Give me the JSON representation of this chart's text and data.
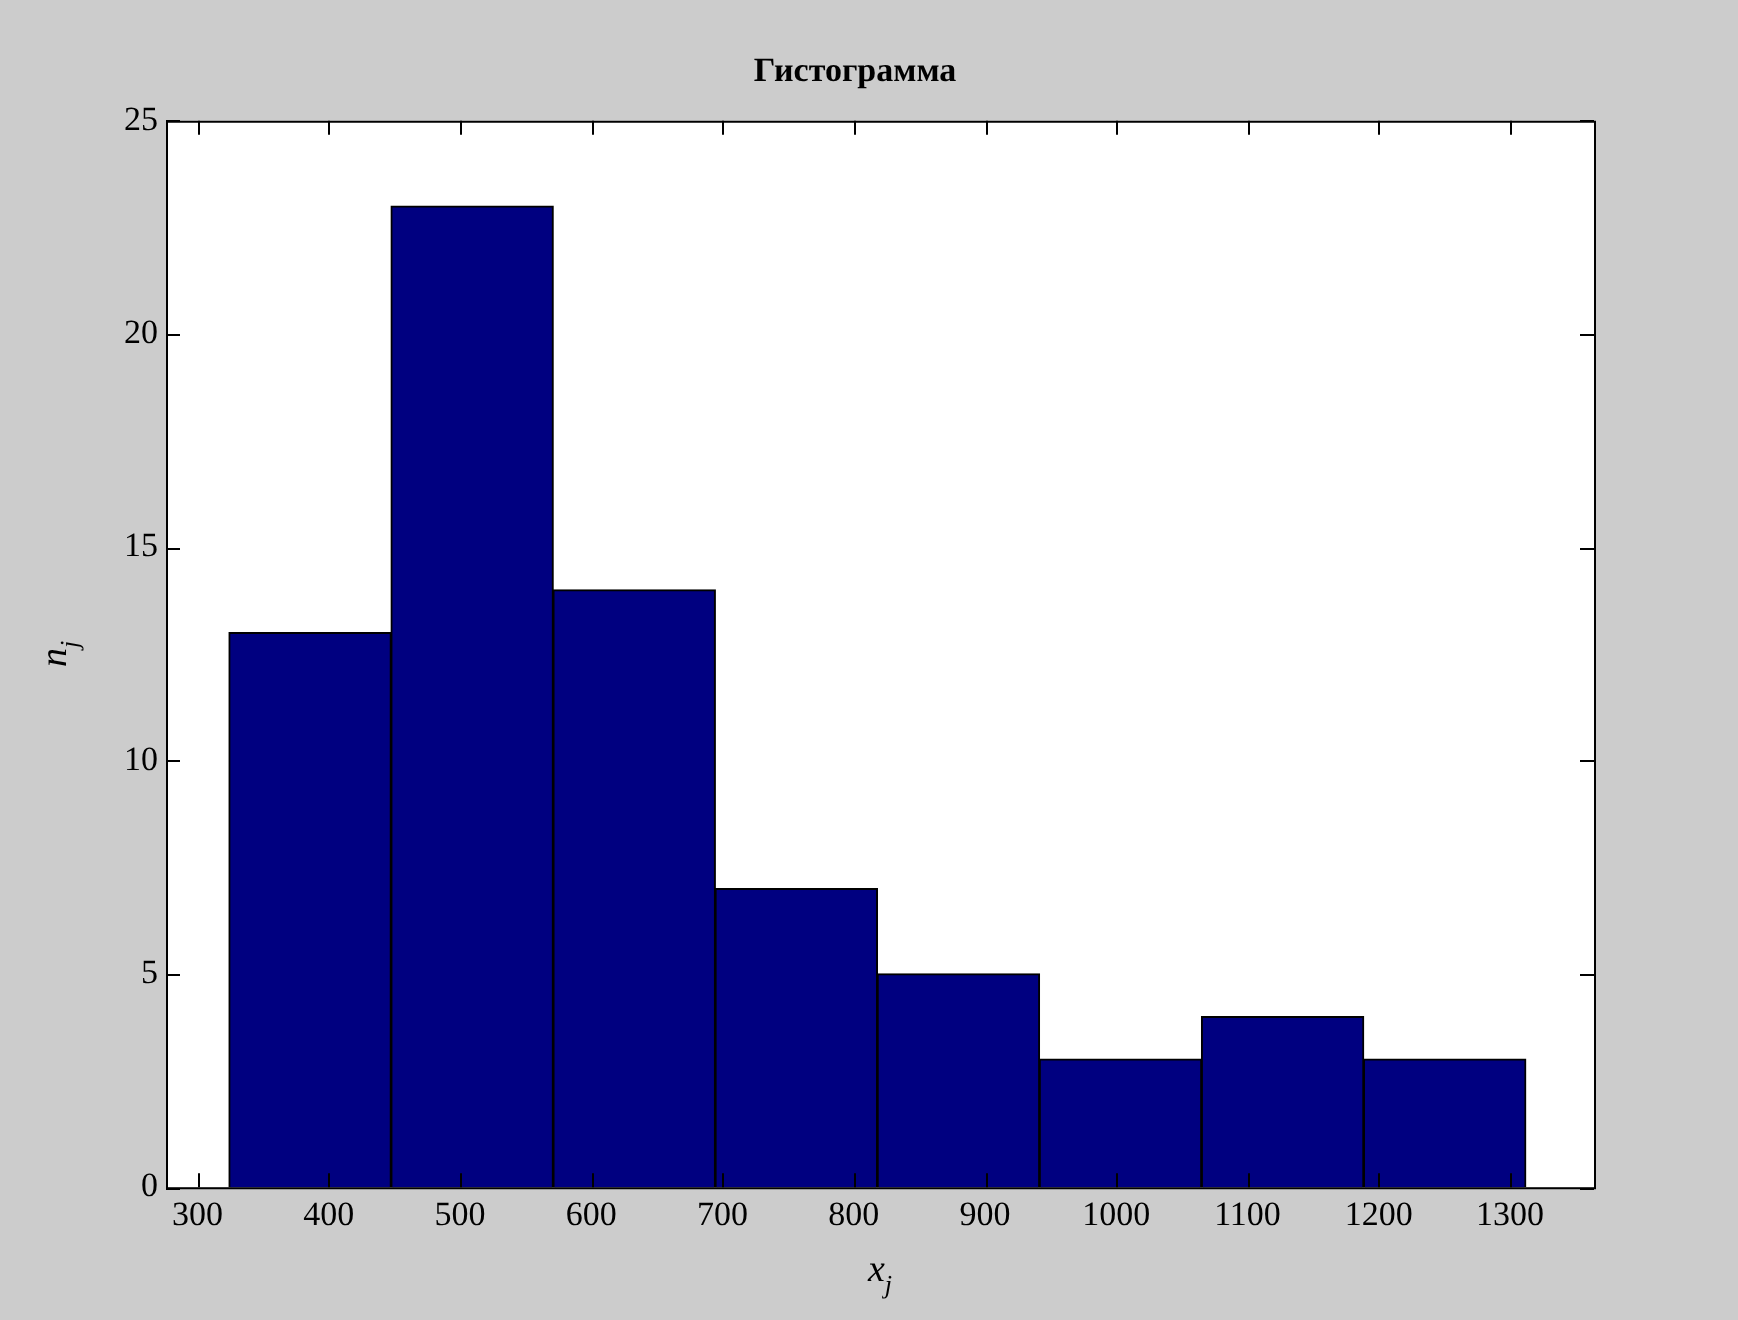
{
  "chart_data": {
    "type": "histogram",
    "title": "Гистограмма",
    "xlabel": "x$_{j}$",
    "ylabel": "n$_{j}$",
    "bins": [
      324,
      447.5,
      571,
      694.5,
      818,
      941.5,
      1065,
      1188.5,
      1312
    ],
    "values": [
      13,
      23,
      14,
      7,
      5,
      3,
      4,
      3
    ],
    "color": "#000080",
    "xlim": [
      276,
      1364
    ],
    "xticks": [
      300,
      400,
      500,
      600,
      700,
      800,
      900,
      1000,
      1100,
      1200,
      1300
    ],
    "ylim": [
      0,
      25
    ],
    "yticks": [
      0,
      5,
      10,
      15,
      20,
      25
    ],
    "grid": false,
    "legend": false
  }
}
